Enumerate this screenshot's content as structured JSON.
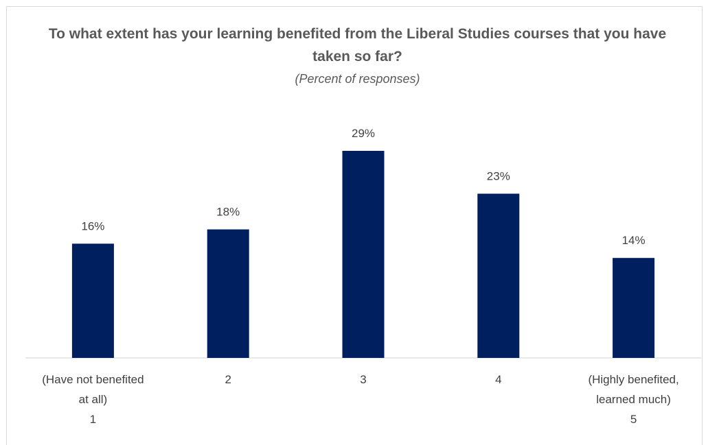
{
  "chart_data": {
    "type": "bar",
    "title": "To what extent has your learning benefited from the Liberal Studies courses that you have taken so far?",
    "subtitle": "(Percent of responses)",
    "categories": [
      [
        "(Have not benefited",
        "at all)",
        "1"
      ],
      [
        "2"
      ],
      [
        "3"
      ],
      [
        "4"
      ],
      [
        "(Highly benefited,",
        "learned much)",
        "5"
      ]
    ],
    "values": [
      16,
      18,
      29,
      23,
      14
    ],
    "data_labels": [
      "16%",
      "18%",
      "29%",
      "23%",
      "14%"
    ],
    "xlabel": "",
    "ylabel": "",
    "ylim": [
      0,
      29
    ],
    "grid": false,
    "legend": "none",
    "bar_color": "#001f5f"
  }
}
